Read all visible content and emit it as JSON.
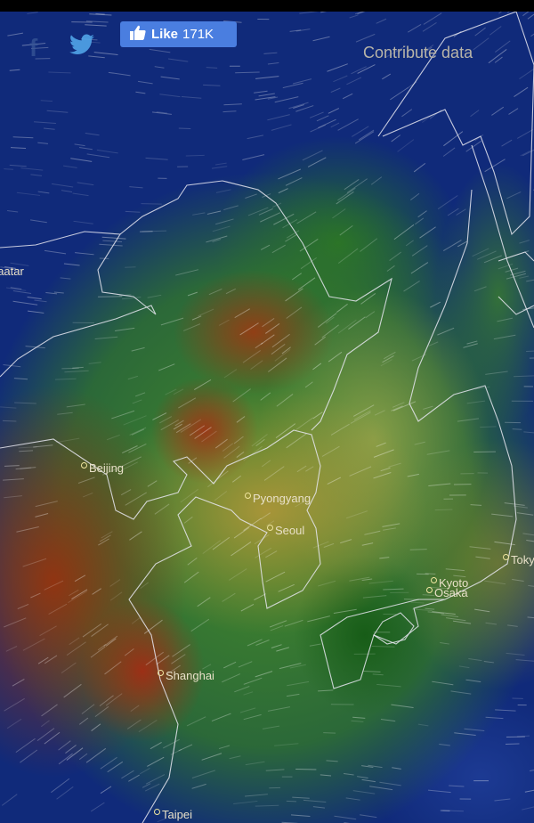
{
  "social": {
    "facebook_icon": "facebook-icon",
    "twitter_icon": "twitter-icon",
    "like_label": "Like",
    "like_count": "171K"
  },
  "contribute_label": "Contribute data",
  "cities": [
    {
      "name": "Ulaanbaatar",
      "id": "ulaanbaatar"
    },
    {
      "name": "Beijing",
      "id": "beijing"
    },
    {
      "name": "Pyongyang",
      "id": "pyongyang"
    },
    {
      "name": "Seoul",
      "id": "seoul"
    },
    {
      "name": "Kyoto",
      "id": "kyoto"
    },
    {
      "name": "Osaka",
      "id": "osaka"
    },
    {
      "name": "Tokyo",
      "id": "tokyo"
    },
    {
      "name": "Shanghai",
      "id": "shanghai"
    },
    {
      "name": "Taipei",
      "id": "taipei"
    }
  ],
  "colors": {
    "low": "#102a7a",
    "mid": "#3c8c2c",
    "high": "#963c14",
    "like_button": "#4a7ee0"
  }
}
